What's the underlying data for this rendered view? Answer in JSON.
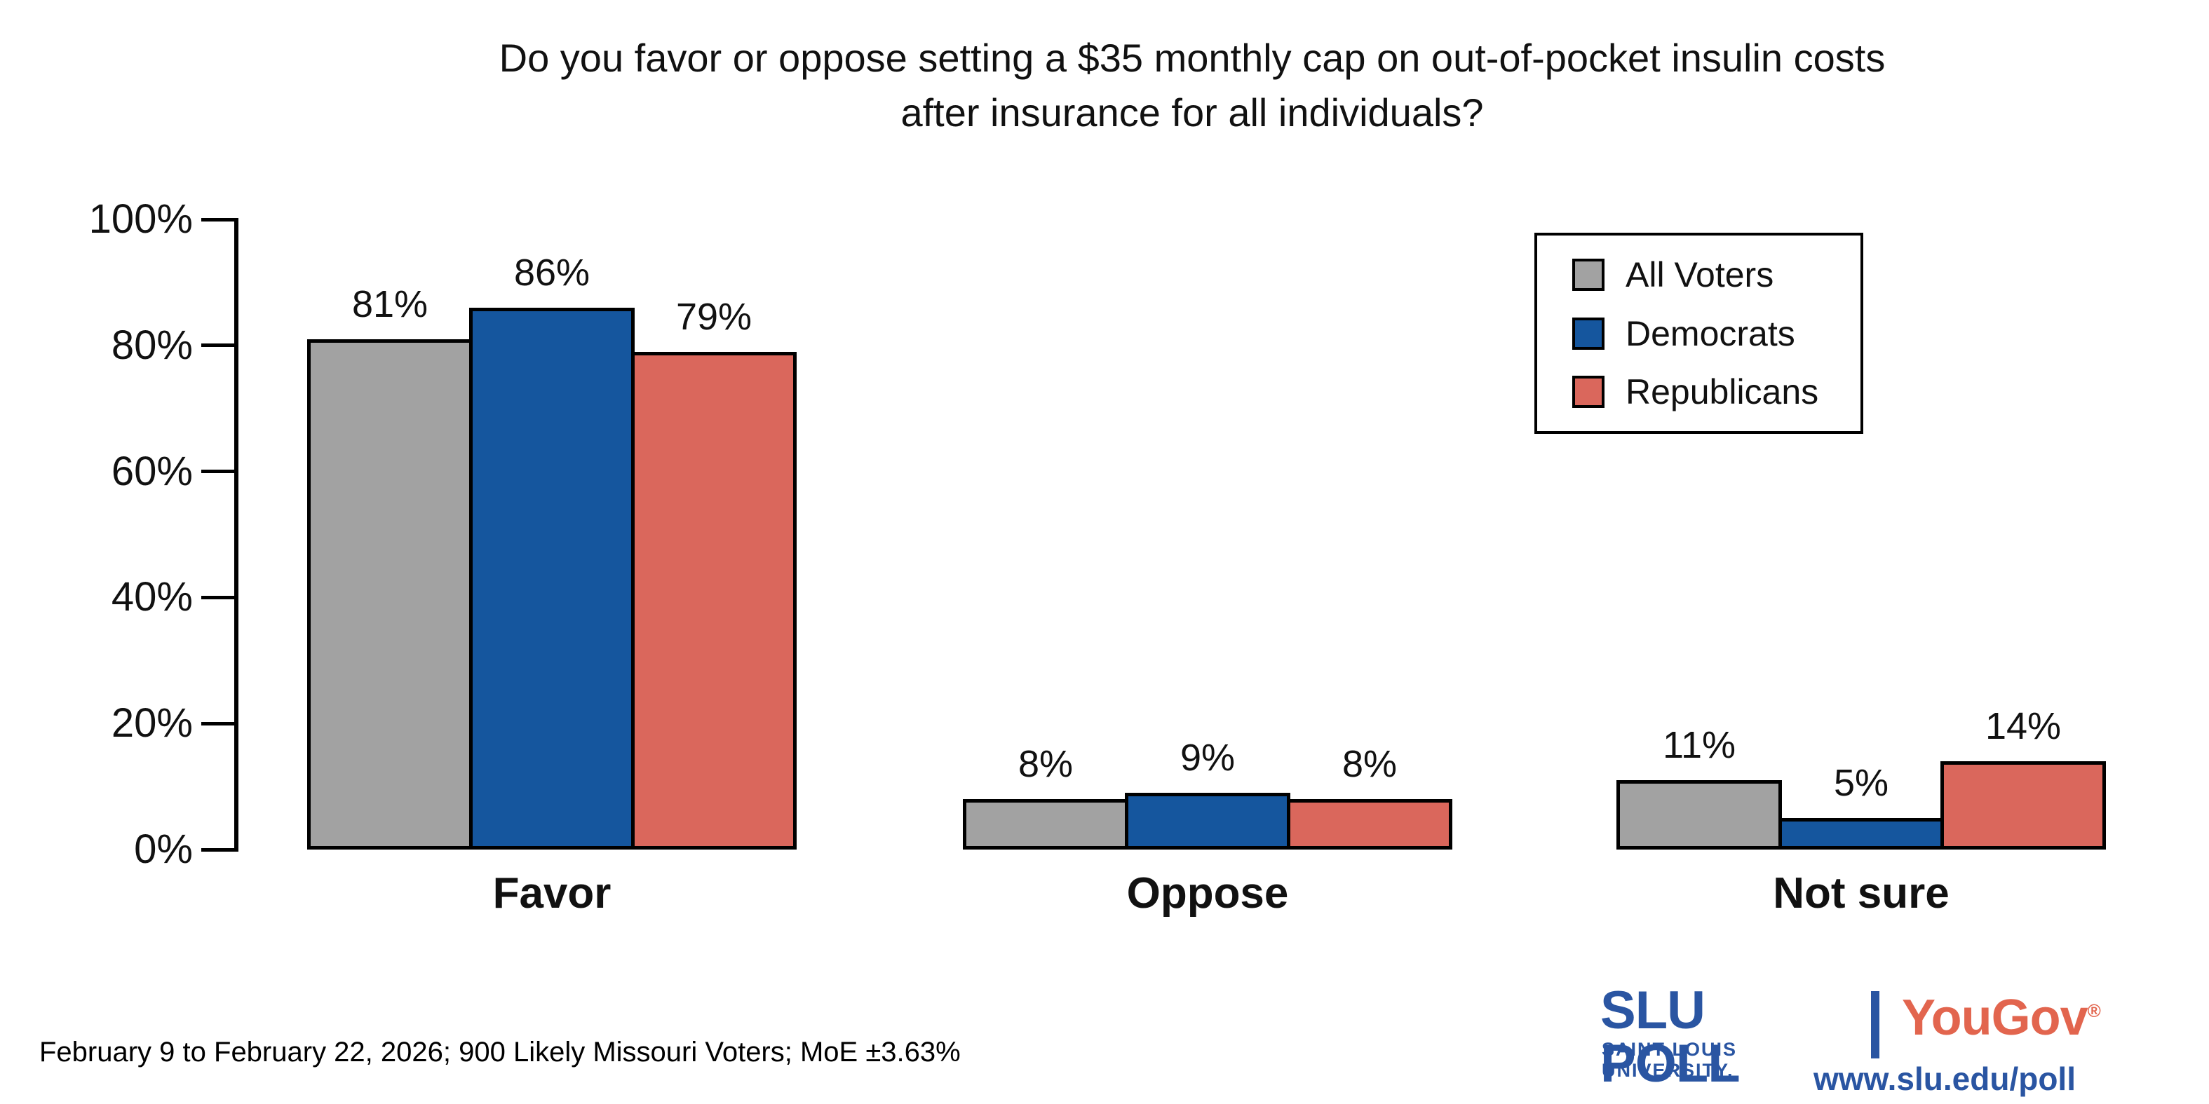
{
  "chart_data": {
    "type": "bar",
    "title": "Do you favor or oppose setting a $35 monthly cap on out-of-pocket insulin costs after insurance for all individuals?",
    "title_lines": [
      "Do you favor or oppose setting a $35 monthly cap on out-of-pocket insulin costs",
      "after insurance for all individuals?"
    ],
    "categories": [
      "Favor",
      "Oppose",
      "Not sure"
    ],
    "series": [
      {
        "name": "All Voters",
        "color": "#A2A2A2",
        "values": [
          81,
          8,
          11
        ]
      },
      {
        "name": "Democrats",
        "color": "#15569E",
        "values": [
          86,
          9,
          5
        ]
      },
      {
        "name": "Republicans",
        "color": "#DA675C",
        "values": [
          79,
          8,
          14
        ]
      }
    ],
    "value_labels": [
      [
        "81%",
        "8%",
        "11%"
      ],
      [
        "86%",
        "9%",
        "5%"
      ],
      [
        "79%",
        "8%",
        "14%"
      ]
    ],
    "value_suffix": "%",
    "ylim": [
      0,
      100
    ],
    "yticks": [
      0,
      20,
      40,
      60,
      80,
      100
    ],
    "ytick_labels": [
      "0%",
      "20%",
      "40%",
      "60%",
      "80%",
      "100%"
    ],
    "grid": false,
    "legend_position": "upper-right",
    "bar_outline_color": "#000000"
  },
  "footer": {
    "note": "February 9 to February 22, 2026; 900 Likely Missouri Voters; MoE ±3.63%"
  },
  "branding": {
    "slu_title": "SLU POLL",
    "slu_subtitle": "SAINT LOUIS UNIVERSITY.",
    "yougov": "YouGov",
    "registered_mark": "®",
    "url": "www.slu.edu/poll",
    "slu_blue": "#2A55A2",
    "yougov_red": "#E2654E"
  }
}
